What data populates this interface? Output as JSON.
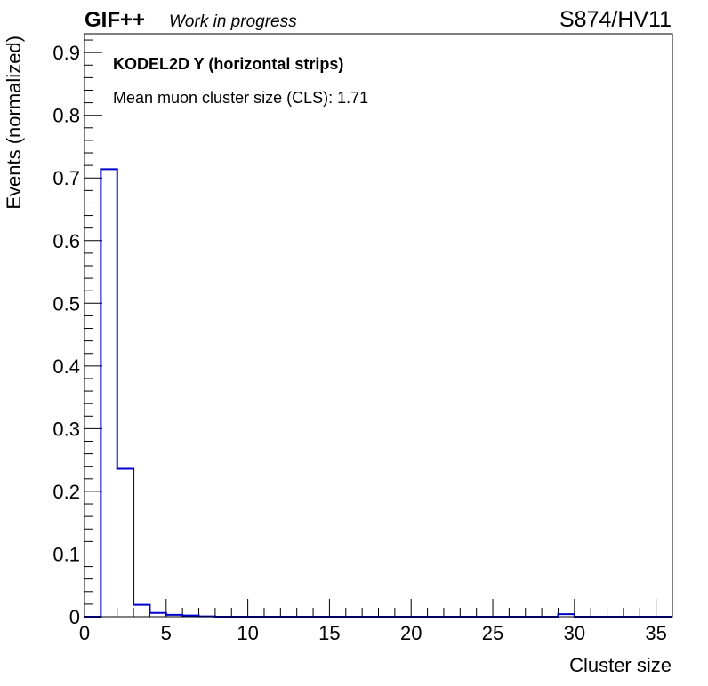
{
  "header": {
    "experiment": "GIF++",
    "status": "Work in progress",
    "run_label": "S874/HV11"
  },
  "annotations": {
    "detector": "KODEL2D Y (horizontal strips)",
    "mean_cls": "Mean muon cluster size (CLS): 1.71"
  },
  "chart_data": {
    "type": "histogram",
    "title": "",
    "xlabel": "Cluster size",
    "ylabel": "Events (normalized)",
    "xlim": [
      0,
      36
    ],
    "ylim": [
      0,
      0.93
    ],
    "x_ticks": [
      0,
      5,
      10,
      15,
      20,
      25,
      30,
      35
    ],
    "y_ticks": [
      0,
      0.1,
      0.2,
      0.3,
      0.4,
      0.5,
      0.6,
      0.7,
      0.8,
      0.9
    ],
    "x_tick_labels": [
      "0",
      "5",
      "10",
      "15",
      "20",
      "25",
      "30",
      "35"
    ],
    "y_tick_labels": [
      "0",
      "0.1",
      "0.2",
      "0.3",
      "0.4",
      "0.5",
      "0.6",
      "0.7",
      "0.8",
      "0.9"
    ],
    "grid": false,
    "line_color": "#0000cc",
    "bin_width": 1,
    "bins": [
      {
        "x_low": 1,
        "value": 0.714
      },
      {
        "x_low": 2,
        "value": 0.236
      },
      {
        "x_low": 3,
        "value": 0.019
      },
      {
        "x_low": 4,
        "value": 0.006
      },
      {
        "x_low": 5,
        "value": 0.003
      },
      {
        "x_low": 6,
        "value": 0.002
      },
      {
        "x_low": 7,
        "value": 0.0005
      },
      {
        "x_low": 29,
        "value": 0.004
      }
    ]
  }
}
